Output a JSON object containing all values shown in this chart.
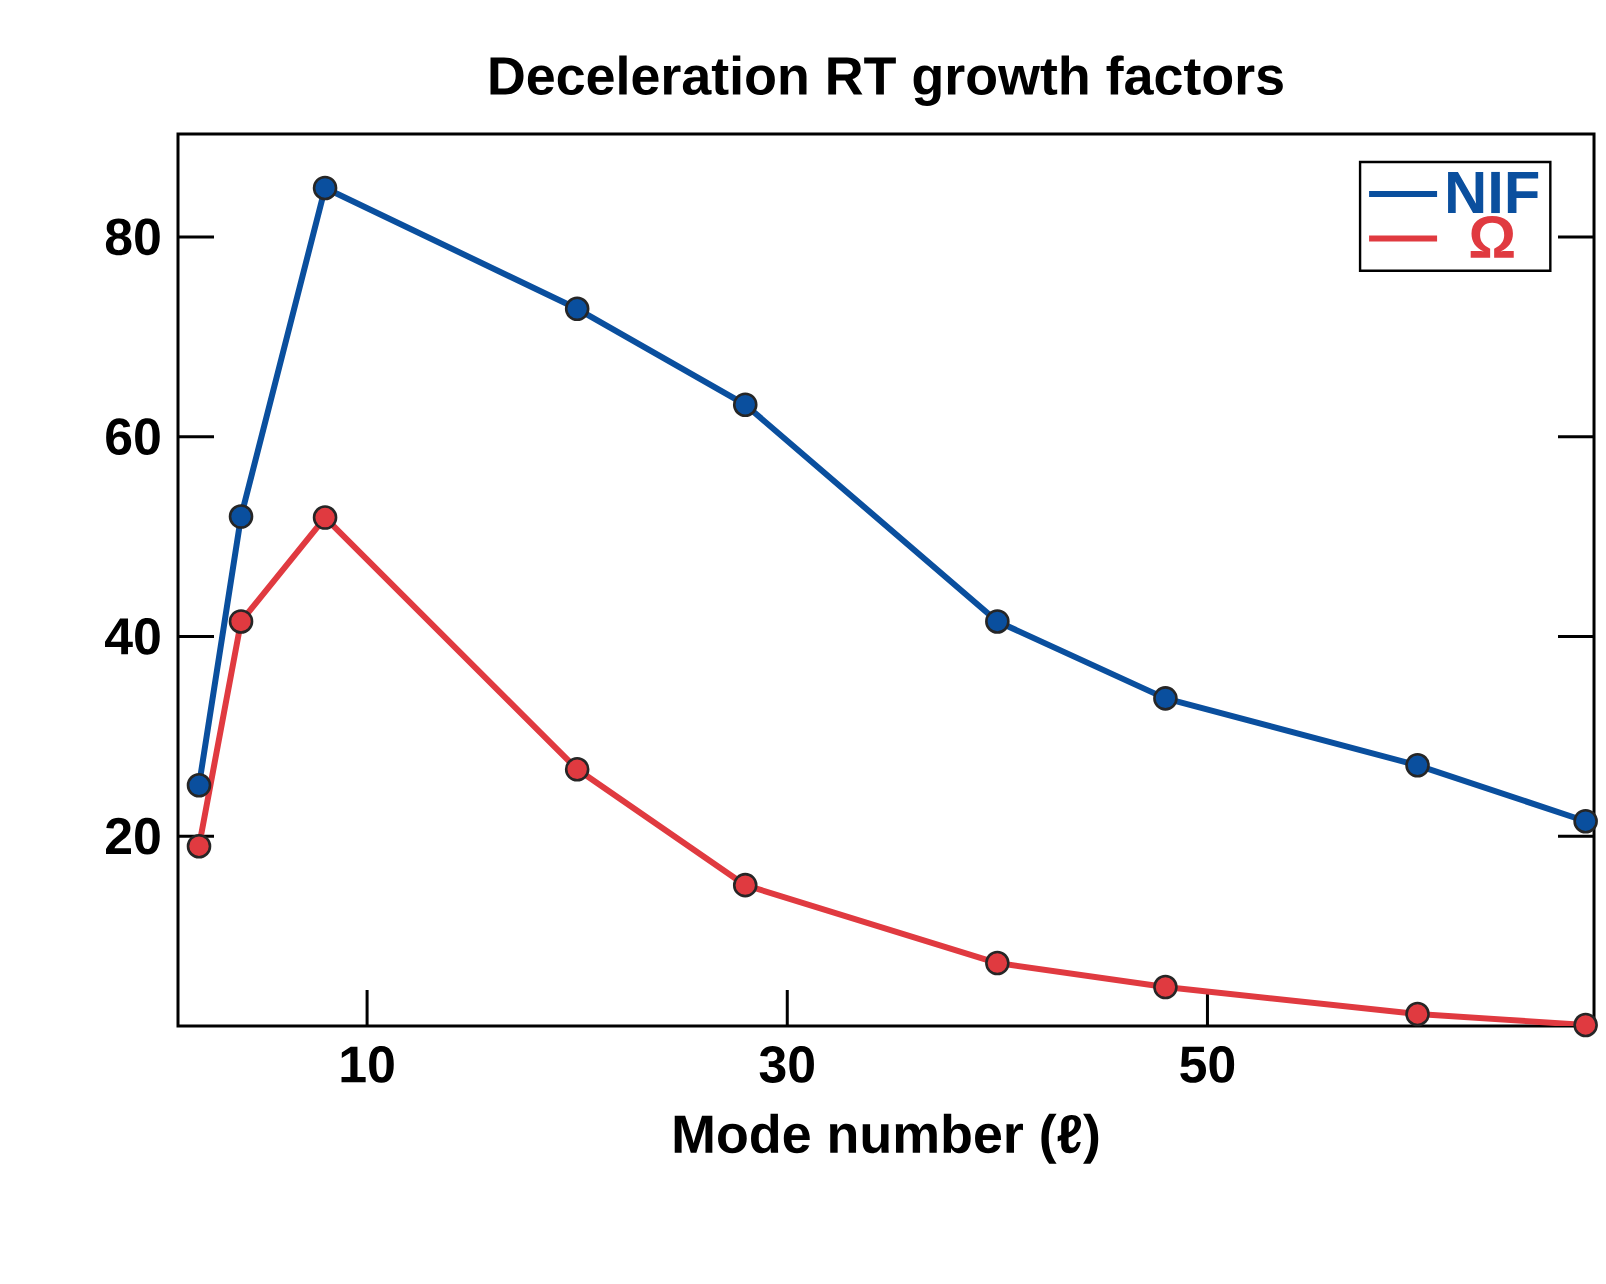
{
  "chart_data": {
    "type": "line",
    "title": "Deceleration RT growth factors",
    "xlabel": "Mode number (ℓ)",
    "x": [
      2,
      4,
      8,
      20,
      28,
      40,
      48,
      60,
      68
    ],
    "series": [
      {
        "name": "NIF",
        "color": "#0a4f9e",
        "values": [
          25.1,
          52.0,
          84.9,
          72.8,
          63.2,
          41.5,
          33.8,
          27.1,
          21.5
        ]
      },
      {
        "name": "Ω",
        "color": "#e03a40",
        "values": [
          19.0,
          41.5,
          51.9,
          26.7,
          15.1,
          7.3,
          4.9,
          2.2,
          1.1
        ]
      }
    ],
    "xlim": [
      1,
      68.4
    ],
    "ylim": [
      1,
      90.3
    ],
    "xticks": [
      10,
      30,
      50
    ],
    "yticks": [
      20,
      40,
      60,
      80
    ],
    "legend": "top right",
    "marker": "circle",
    "line_style": "solid",
    "grid": false
  }
}
